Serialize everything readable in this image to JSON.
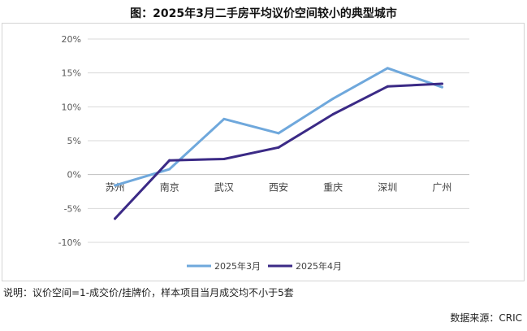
{
  "title": "图：2025年3月二手房平均议价空间较小的典型城市",
  "note": "说明：议价空间=1-成交价/挂牌价，样本项目当月成交均不小于5套",
  "source": "数据来源：CRIC",
  "chart_data": {
    "type": "line",
    "categories": [
      "苏州",
      "南京",
      "武汉",
      "西安",
      "重庆",
      "深圳",
      "广州"
    ],
    "series": [
      {
        "name": "2025年3月",
        "color": "#6fa8dc",
        "values": [
          -1.6,
          0.8,
          8.2,
          6.1,
          11.2,
          15.7,
          12.9
        ]
      },
      {
        "name": "2025年4月",
        "color": "#3b2a86",
        "values": [
          -6.5,
          2.1,
          2.3,
          4.0,
          8.9,
          13.0,
          13.4
        ]
      }
    ],
    "ylim": [
      -10,
      20
    ],
    "yticks": [
      -10,
      -5,
      0,
      5,
      10,
      15,
      20
    ],
    "ytick_labels": [
      "-10%",
      "-5%",
      "0%",
      "5%",
      "10%",
      "15%",
      "20%"
    ],
    "grid": true,
    "legend_position": "bottom"
  }
}
